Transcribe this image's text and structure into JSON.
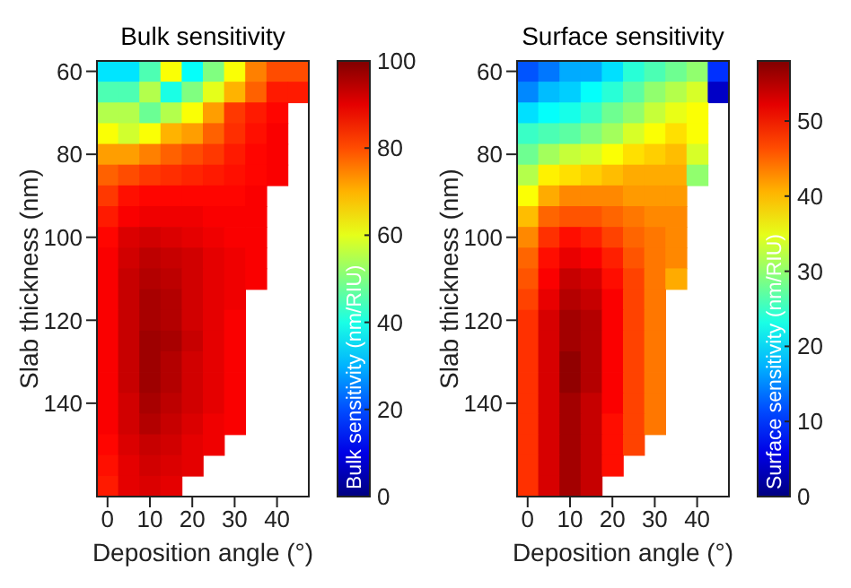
{
  "chart_data": [
    {
      "type": "heatmap",
      "title": "Bulk sensitivity",
      "xlabel": "Deposition angle (°)",
      "ylabel": "Slab thickness (nm)",
      "clabel": "Bulk sensitivity (nm/RIU)",
      "categories": [
        "0",
        null,
        "10",
        null,
        "20",
        null,
        "30",
        null,
        "40",
        null
      ],
      "y_categories": [
        "60",
        null,
        null,
        null,
        "80",
        null,
        null,
        null,
        "100",
        null,
        null,
        null,
        "120",
        null,
        null,
        null,
        "140",
        null,
        null,
        null,
        null
      ],
      "cells": [
        [
          35,
          35,
          45,
          62,
          38,
          50,
          62,
          75,
          80,
          80
        ],
        [
          45,
          45,
          55,
          40,
          50,
          60,
          70,
          78,
          85,
          85
        ],
        [
          55,
          55,
          48,
          55,
          62,
          72,
          82,
          85,
          87,
          null
        ],
        [
          62,
          58,
          62,
          70,
          72,
          78,
          83,
          86,
          88,
          null
        ],
        [
          72,
          72,
          75,
          78,
          80,
          82,
          85,
          87,
          88,
          null
        ],
        [
          78,
          80,
          82,
          83,
          84,
          85,
          86,
          87,
          88,
          null
        ],
        [
          82,
          86,
          87,
          87,
          87,
          87,
          87,
          88,
          null,
          null
        ],
        [
          85,
          88,
          89,
          89,
          89,
          88,
          88,
          88,
          null,
          null
        ],
        [
          87,
          91,
          92,
          91,
          90,
          89,
          88,
          88,
          null,
          null
        ],
        [
          88,
          92,
          94,
          93,
          92,
          90,
          89,
          88,
          null,
          null
        ],
        [
          88,
          93,
          95,
          94,
          92,
          90,
          89,
          88,
          null,
          null
        ],
        [
          88,
          93,
          96,
          95,
          92,
          90,
          89,
          null,
          null,
          null
        ],
        [
          88,
          93,
          96,
          95,
          92,
          90,
          88,
          null,
          null,
          null
        ],
        [
          88,
          93,
          97,
          96,
          93,
          90,
          88,
          null,
          null,
          null
        ],
        [
          88,
          93,
          97,
          95,
          92,
          90,
          88,
          null,
          null,
          null
        ],
        [
          88,
          93,
          97,
          95,
          92,
          90,
          88,
          null,
          null,
          null
        ],
        [
          88,
          92,
          96,
          94,
          92,
          90,
          88,
          null,
          null,
          null
        ],
        [
          88,
          92,
          95,
          93,
          91,
          89,
          88,
          null,
          null,
          null
        ],
        [
          87,
          91,
          93,
          92,
          90,
          89,
          null,
          null,
          null,
          null
        ],
        [
          86,
          90,
          92,
          91,
          90,
          null,
          null,
          null,
          null,
          null
        ],
        [
          85,
          90,
          91,
          90,
          null,
          null,
          null,
          null,
          null,
          null
        ]
      ],
      "clim": [
        0,
        100
      ],
      "cticks": [
        0,
        20,
        40,
        60,
        80,
        100
      ]
    },
    {
      "type": "heatmap",
      "title": "Surface sensitivity",
      "xlabel": "Deposition angle (°)",
      "ylabel": "Slab thickness (nm)",
      "clabel": "Surface sensitivity (nm/RIU)",
      "categories": [
        "0",
        null,
        "10",
        null,
        "20",
        null,
        "30",
        null,
        "40",
        null
      ],
      "y_categories": [
        "60",
        null,
        null,
        null,
        "80",
        null,
        null,
        null,
        "100",
        null,
        null,
        null,
        "120",
        null,
        null,
        null,
        "140",
        null,
        null,
        null,
        null
      ],
      "cells": [
        [
          12,
          14,
          17,
          17,
          20,
          24,
          26,
          28,
          30,
          10
        ],
        [
          15,
          18,
          19,
          22,
          24,
          27,
          30,
          32,
          34,
          4
        ],
        [
          20,
          22,
          23,
          25,
          28,
          30,
          33,
          35,
          36,
          null
        ],
        [
          25,
          26,
          27,
          29,
          31,
          34,
          36,
          38,
          36,
          null
        ],
        [
          28,
          31,
          33,
          34,
          36,
          38,
          39,
          40,
          34,
          null
        ],
        [
          32,
          37,
          38,
          39,
          40,
          41,
          41,
          41,
          30,
          null
        ],
        [
          36,
          41,
          43,
          43,
          43,
          42,
          42,
          42,
          null,
          null
        ],
        [
          40,
          45,
          46,
          46,
          45,
          44,
          43,
          43,
          null,
          null
        ],
        [
          43,
          48,
          50,
          49,
          47,
          45,
          44,
          43,
          null,
          null
        ],
        [
          45,
          50,
          52,
          51,
          49,
          46,
          44,
          43,
          null,
          null
        ],
        [
          46,
          51,
          54,
          53,
          50,
          47,
          44,
          41,
          null,
          null
        ],
        [
          47,
          52,
          55,
          54,
          51,
          47,
          44,
          null,
          null,
          null
        ],
        [
          48,
          53,
          56,
          55,
          51,
          47,
          44,
          null,
          null,
          null
        ],
        [
          48,
          53,
          56,
          55,
          51,
          47,
          44,
          null,
          null,
          null
        ],
        [
          48,
          53,
          57,
          55,
          51,
          47,
          44,
          null,
          null,
          null
        ],
        [
          48,
          53,
          57,
          55,
          51,
          47,
          44,
          null,
          null,
          null
        ],
        [
          48,
          53,
          56,
          54,
          51,
          47,
          44,
          null,
          null,
          null
        ],
        [
          48,
          53,
          56,
          54,
          50,
          47,
          44,
          null,
          null,
          null
        ],
        [
          48,
          53,
          56,
          54,
          50,
          47,
          null,
          null,
          null,
          null
        ],
        [
          48,
          53,
          56,
          54,
          50,
          null,
          null,
          null,
          null,
          null
        ],
        [
          48,
          53,
          56,
          54,
          null,
          null,
          null,
          null,
          null,
          null
        ]
      ],
      "clim": [
        0,
        58
      ],
      "cticks": [
        0,
        10,
        20,
        30,
        40,
        50
      ]
    }
  ]
}
